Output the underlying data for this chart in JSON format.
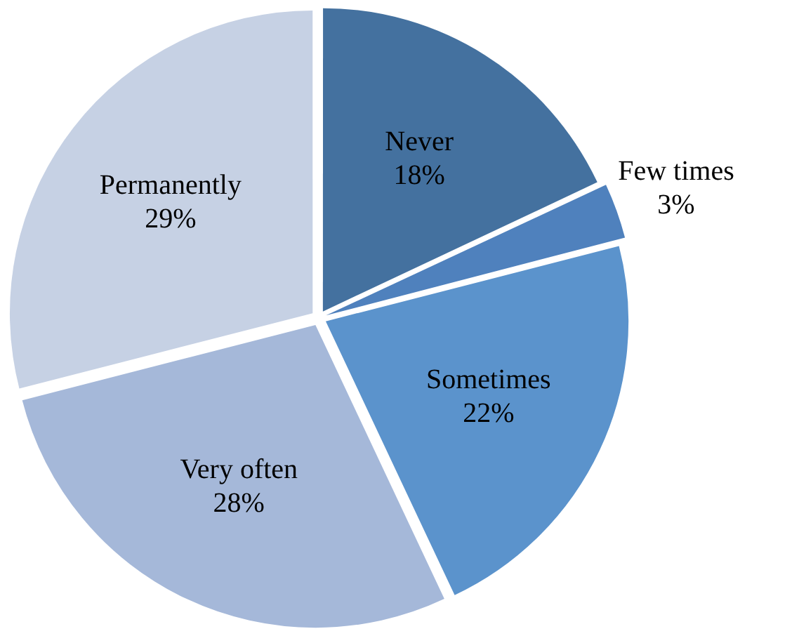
{
  "chart_data": {
    "type": "pie",
    "categories": [
      "Never",
      "Few times",
      "Sometimes",
      "Very often",
      "Permanently"
    ],
    "values": [
      18,
      3,
      22,
      28,
      29
    ],
    "colors": [
      "#44719f",
      "#4f81bd",
      "#5b93cc",
      "#a5b8d9",
      "#c6d1e4"
    ],
    "value_labels": [
      "18%",
      "3%",
      "22%",
      "28%",
      "29%"
    ],
    "legend": false
  }
}
